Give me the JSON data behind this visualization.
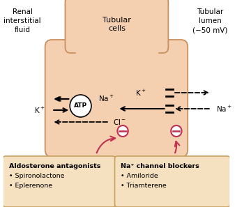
{
  "bg_color": "#ffffff",
  "cell_fill": "#f5d0b0",
  "cell_edge": "#c89060",
  "box_fill": "#f5e0c0",
  "box_edge": "#c8a060",
  "text_color": "#000000",
  "red_color": "#c03050",
  "header_left": "Renal\ninterstitial\nfluid",
  "header_center": "Tubular\ncells",
  "header_right": "Tubular\nlumen\n(−50 mV)",
  "box1_title": "Aldosterone antagonists",
  "box1_items": [
    "• Spironolactone",
    "• Eplerenone"
  ],
  "box2_title": "Na⁺ channel blockers",
  "box2_items": [
    "• Amiloride",
    "• Triamterene"
  ]
}
